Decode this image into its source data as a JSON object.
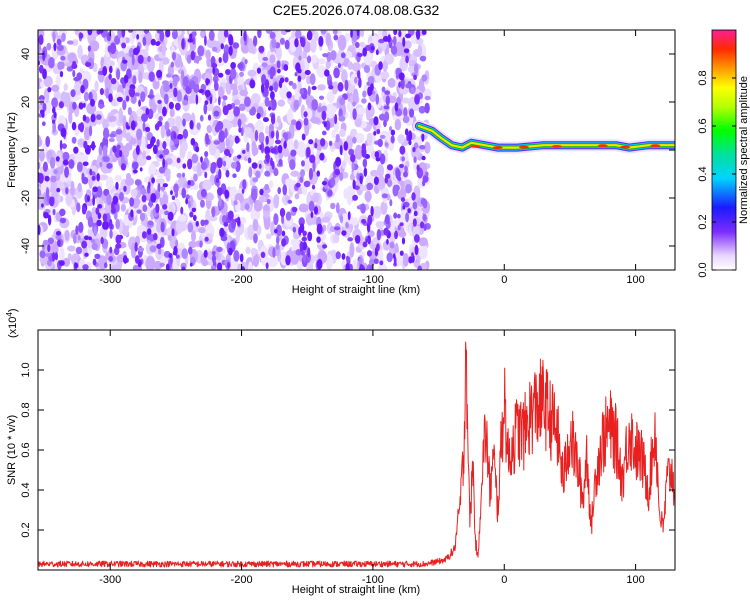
{
  "page": {
    "title": "C2E5.2026.074.08.08.G32"
  },
  "colors": {
    "spectrogram_ridge": "#00b400",
    "spectrogram_noise": "#7b2cff",
    "snr_line": "#e82020",
    "frame": "#000000"
  },
  "chart_data": [
    {
      "type": "heatmap",
      "name": "spectrogram",
      "title": "C2E5.2026.074.08.08.G32",
      "xlabel": "Height of straight line (km)",
      "ylabel": "Frequency (Hz)",
      "xlim": [
        -355,
        130
      ],
      "ylim": [
        -50,
        50
      ],
      "xticks": [
        -300,
        -200,
        -100,
        0,
        100
      ],
      "yticks": [
        -40,
        -20,
        0,
        20,
        40
      ],
      "noise_region_x": [
        -355,
        -58
      ],
      "signal_ridge": {
        "x": [
          -65,
          -55,
          -48,
          -40,
          -32,
          -25,
          -15,
          -5,
          10,
          30,
          60,
          85,
          95,
          110,
          130
        ],
        "y": [
          10,
          8,
          5,
          2,
          1,
          3,
          2,
          1,
          1,
          2,
          2,
          2,
          1,
          2,
          2
        ]
      },
      "colorbar": {
        "label": "Normalized spectral amplitude",
        "range": [
          0,
          1
        ],
        "ticks": [
          0.0,
          0.2,
          0.4,
          0.6,
          0.8
        ],
        "tick_labels": [
          "0.0",
          "0.2",
          "0.4",
          "0.6",
          "0.8"
        ]
      },
      "grid": false
    },
    {
      "type": "line",
      "name": "snr",
      "xlabel": "Height of straight line (km)",
      "ylabel": "SNR (10 * v/v)",
      "scale_note": "(x10",
      "scale_exp": "4",
      "scale_close": ")",
      "xlim": [
        -355,
        130
      ],
      "ylim": [
        0,
        1.2
      ],
      "xticks": [
        -300,
        -200,
        -100,
        0,
        100
      ],
      "yticks": [
        0.2,
        0.4,
        0.6,
        0.8,
        1.0
      ],
      "ytick_labels": [
        "0.2",
        "0.4",
        "0.6",
        "0.8",
        "1.0"
      ],
      "series": [
        {
          "x": [
            -355,
            -300,
            -250,
            -200,
            -150,
            -100,
            -60,
            -45,
            -38,
            -34,
            -31,
            -30,
            -29,
            -28,
            -27,
            -26,
            -24,
            -22,
            -20,
            -17,
            -14,
            -11,
            -8,
            -5,
            -2,
            0,
            3,
            6,
            10,
            15,
            20,
            25,
            30,
            35,
            40,
            45,
            50,
            55,
            60,
            63,
            66,
            70,
            75,
            80,
            85,
            90,
            95,
            100,
            105,
            110,
            115,
            118,
            121,
            124,
            127,
            130
          ],
          "y": [
            0.03,
            0.03,
            0.03,
            0.03,
            0.03,
            0.03,
            0.03,
            0.05,
            0.1,
            0.3,
            0.55,
            0.9,
            1.17,
            0.8,
            0.4,
            0.25,
            0.55,
            0.15,
            0.05,
            0.5,
            0.7,
            0.4,
            0.55,
            0.3,
            0.65,
            0.88,
            0.55,
            0.62,
            0.7,
            0.68,
            0.78,
            0.82,
            0.84,
            0.76,
            0.7,
            0.45,
            0.68,
            0.55,
            0.35,
            0.6,
            0.2,
            0.5,
            0.65,
            0.72,
            0.65,
            0.45,
            0.7,
            0.6,
            0.55,
            0.4,
            0.72,
            0.3,
            0.2,
            0.45,
            0.5,
            0.4
          ]
        }
      ],
      "grid": false
    }
  ]
}
